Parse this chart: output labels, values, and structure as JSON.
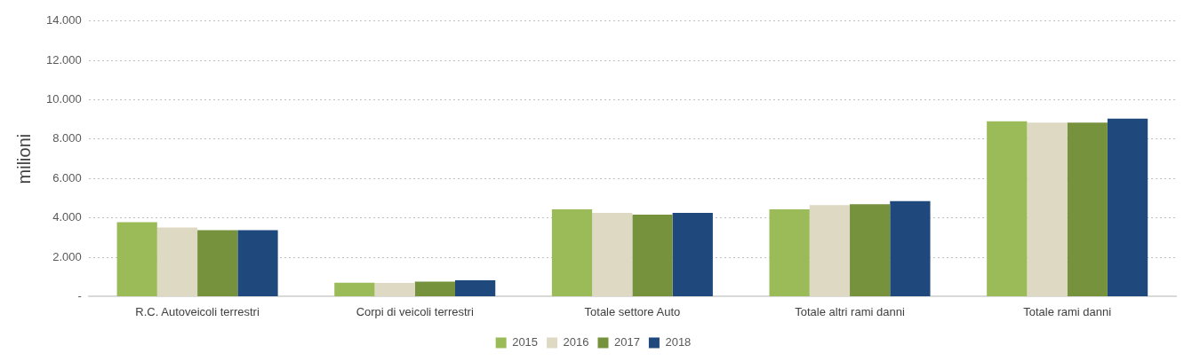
{
  "chart_data": {
    "type": "bar",
    "ylabel": "milioni",
    "categories": [
      "R.C. Autoveicoli terrestri",
      "Corpi di veicoli terrestri",
      "Totale settore Auto",
      "Totale altri rami danni",
      "Totale rami danni"
    ],
    "series": [
      {
        "name": "2015",
        "color": "#9bbb59",
        "values": [
          3780,
          700,
          4430,
          4430,
          8910
        ]
      },
      {
        "name": "2016",
        "color": "#ddd9c3",
        "values": [
          3510,
          690,
          4250,
          4650,
          8840
        ]
      },
      {
        "name": "2017",
        "color": "#76923c",
        "values": [
          3380,
          760,
          4170,
          4700,
          8840
        ]
      },
      {
        "name": "2018",
        "color": "#1f497d",
        "values": [
          3380,
          830,
          4250,
          4850,
          9040
        ]
      }
    ],
    "ylim": [
      0,
      14000
    ],
    "yticks": [
      {
        "value": 0,
        "label": "-"
      },
      {
        "value": 2000,
        "label": "2.000"
      },
      {
        "value": 4000,
        "label": "4.000"
      },
      {
        "value": 6000,
        "label": "6.000"
      },
      {
        "value": 8000,
        "label": "8.000"
      },
      {
        "value": 10000,
        "label": "10.000"
      },
      {
        "value": 12000,
        "label": "12.000"
      },
      {
        "value": 14000,
        "label": "14.000"
      }
    ],
    "grid": "y",
    "legend": "bottom"
  }
}
